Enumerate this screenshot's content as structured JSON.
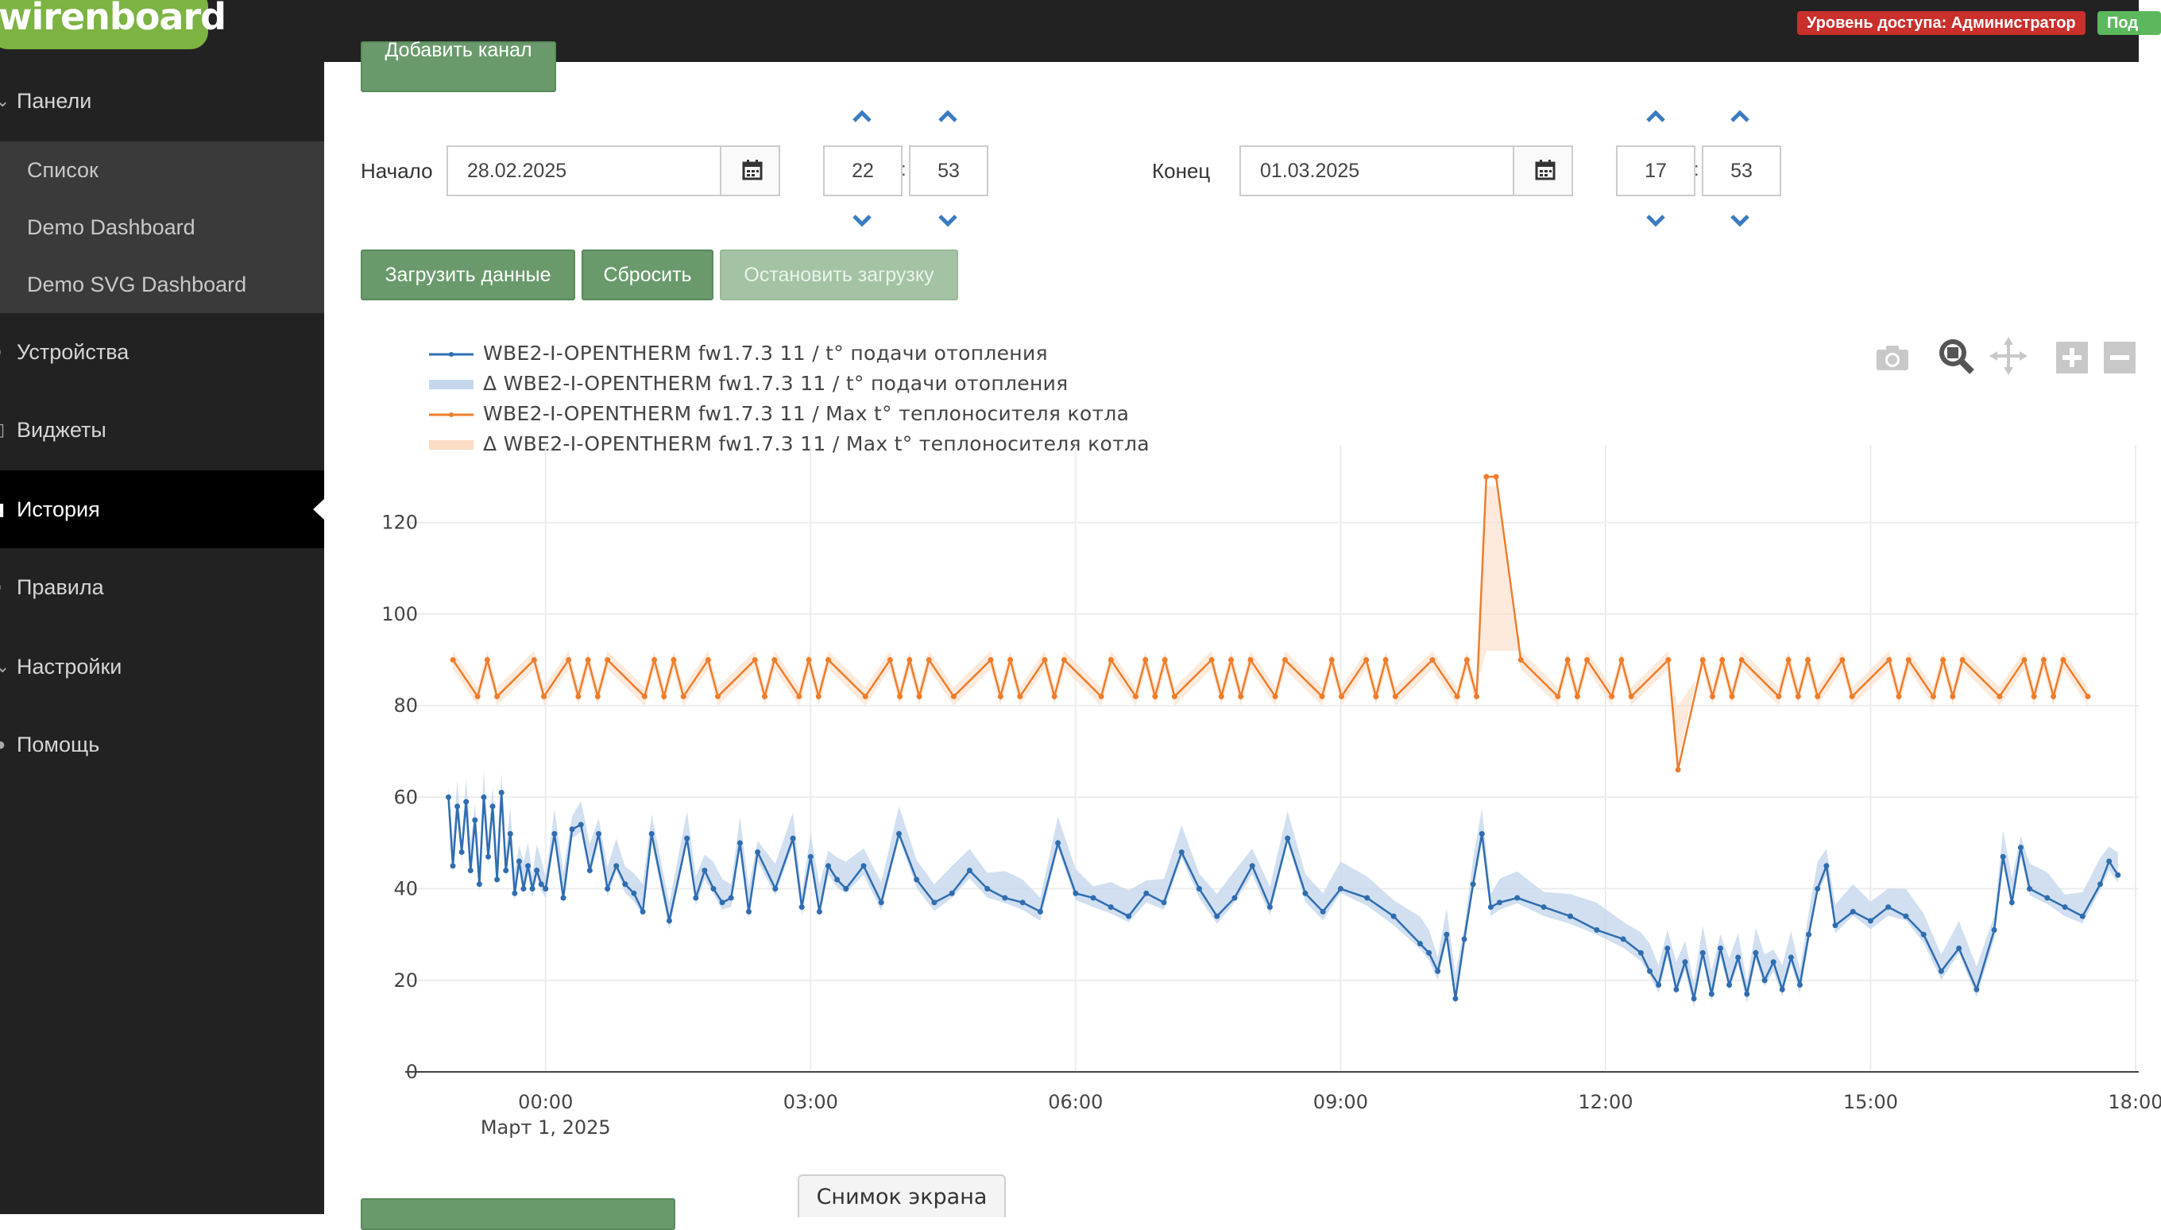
{
  "header": {
    "logo_text": "wirenboard",
    "access_badge": "Уровень доступа: Администратор",
    "user_badge": "Под"
  },
  "sidebar": {
    "items": [
      {
        "label": "Панели",
        "icon": "chevron-down-icon"
      },
      {
        "label": "Устройства",
        "icon": "devices-icon"
      },
      {
        "label": "Виджеты",
        "icon": "widgets-icon"
      },
      {
        "label": "История",
        "icon": "history-icon"
      },
      {
        "label": "Правила",
        "icon": "rules-icon"
      },
      {
        "label": "Настройки",
        "icon": "chevron-down-icon"
      },
      {
        "label": "Помощь",
        "icon": "help-icon"
      }
    ],
    "submenu": [
      "Список",
      "Demo Dashboard",
      "Demo SVG Dashboard"
    ]
  },
  "controls": {
    "add_channel": "Добавить канал",
    "start_label": "Начало",
    "start_date": "28.02.2025",
    "start_hour": "22",
    "start_minute": "53",
    "end_label": "Конец",
    "end_date": "01.03.2025",
    "end_hour": "17",
    "end_minute": "53",
    "time_sep": ":",
    "load": "Загрузить данные",
    "reset": "Сбросить",
    "stop": "Остановить загрузку"
  },
  "footer": {
    "screenshot_tab": "Снимок экрана"
  },
  "colors": {
    "series_blue": "#2f6db0",
    "series_orange": "#ef7d2b",
    "green_button": "#6a9a6c",
    "access_red": "#c9302c"
  },
  "chart_data": {
    "type": "line",
    "legend": [
      "WBE2-I-OPENTHERM fw1.7.3 11 / t° подачи отопления",
      "Δ WBE2-I-OPENTHERM fw1.7.3 11 / t° подачи отопления",
      "WBE2-I-OPENTHERM fw1.7.3 11 / Max t° теплоносителя котла",
      "Δ WBE2-I-OPENTHERM fw1.7.3 11 / Max t° теплоносителя котла"
    ],
    "x_ticks": [
      "00:00",
      "03:00",
      "06:00",
      "09:00",
      "12:00",
      "15:00",
      "18:00"
    ],
    "x_subtick": "Март 1, 2025",
    "y_ticks": [
      0,
      20,
      40,
      60,
      80,
      100,
      120
    ],
    "ylim": [
      0,
      130
    ],
    "xlim_hours": [
      -1.5,
      18
    ],
    "series": [
      {
        "name": "WBE2-I-OPENTHERM fw1.7.3 11 / t° подачи отопления",
        "color": "#2f6db0",
        "x_hours": [
          -1.1,
          -1.05,
          -1.0,
          -0.95,
          -0.9,
          -0.85,
          -0.8,
          -0.75,
          -0.7,
          -0.65,
          -0.6,
          -0.55,
          -0.5,
          -0.45,
          -0.4,
          -0.35,
          -0.3,
          -0.25,
          -0.2,
          -0.15,
          -0.1,
          -0.05,
          0.0,
          0.1,
          0.2,
          0.3,
          0.4,
          0.5,
          0.6,
          0.7,
          0.8,
          0.9,
          1.0,
          1.1,
          1.2,
          1.4,
          1.6,
          1.7,
          1.8,
          1.9,
          2.0,
          2.1,
          2.2,
          2.3,
          2.4,
          2.6,
          2.8,
          2.9,
          3.0,
          3.1,
          3.2,
          3.3,
          3.4,
          3.6,
          3.8,
          4.0,
          4.2,
          4.4,
          4.6,
          4.8,
          5.0,
          5.2,
          5.4,
          5.6,
          5.8,
          6.0,
          6.2,
          6.4,
          6.6,
          6.8,
          7.0,
          7.2,
          7.4,
          7.6,
          7.8,
          8.0,
          8.2,
          8.4,
          8.6,
          8.8,
          9.0,
          9.3,
          9.6,
          9.9,
          10.0,
          10.1,
          10.2,
          10.3,
          10.4,
          10.5,
          10.6,
          10.7,
          10.8,
          11.0,
          11.3,
          11.6,
          11.9,
          12.2,
          12.4,
          12.5,
          12.6,
          12.7,
          12.8,
          12.9,
          13.0,
          13.1,
          13.2,
          13.3,
          13.4,
          13.5,
          13.6,
          13.7,
          13.8,
          13.9,
          14.0,
          14.1,
          14.2,
          14.3,
          14.4,
          14.5,
          14.6,
          14.8,
          15.0,
          15.2,
          15.4,
          15.6,
          15.8,
          16.0,
          16.2,
          16.4,
          16.5,
          16.6,
          16.7,
          16.8,
          17.0,
          17.2,
          17.4,
          17.6,
          17.7,
          17.8
        ],
        "values": [
          60,
          45,
          58,
          48,
          59,
          44,
          55,
          41,
          60,
          47,
          58,
          42,
          61,
          44,
          52,
          39,
          46,
          40,
          45,
          40,
          44,
          41,
          40,
          52,
          38,
          53,
          54,
          44,
          52,
          40,
          45,
          41,
          39,
          35,
          52,
          33,
          51,
          38,
          44,
          40,
          37,
          38,
          50,
          35,
          48,
          40,
          51,
          36,
          47,
          35,
          45,
          42,
          40,
          45,
          37,
          52,
          42,
          37,
          39,
          44,
          40,
          38,
          37,
          35,
          50,
          39,
          38,
          36,
          34,
          39,
          37,
          48,
          40,
          34,
          38,
          45,
          36,
          51,
          39,
          35,
          40,
          38,
          34,
          28,
          26,
          22,
          30,
          16,
          29,
          41,
          52,
          36,
          37,
          38,
          36,
          34,
          31,
          29,
          26,
          22,
          19,
          27,
          18,
          24,
          16,
          26,
          17,
          27,
          19,
          25,
          17,
          26,
          20,
          24,
          18,
          25,
          19,
          30,
          40,
          45,
          32,
          35,
          33,
          36,
          34,
          30,
          22,
          27,
          18,
          31,
          47,
          37,
          49,
          40,
          38,
          36,
          34,
          41,
          46,
          43
        ],
        "band": [
          2,
          6
        ]
      },
      {
        "name": "WBE2-I-OPENTHERM fw1.7.3 11 / Max t° теплоносителя котла",
        "color": "#ef7d2b",
        "pattern": "oscillates between 82 and 90 across the full range",
        "low": 82,
        "high": 90,
        "spikes": [
          {
            "x_hours": 10.7,
            "value": 130
          },
          {
            "x_hours": 12.8,
            "value": 66
          }
        ]
      }
    ]
  }
}
